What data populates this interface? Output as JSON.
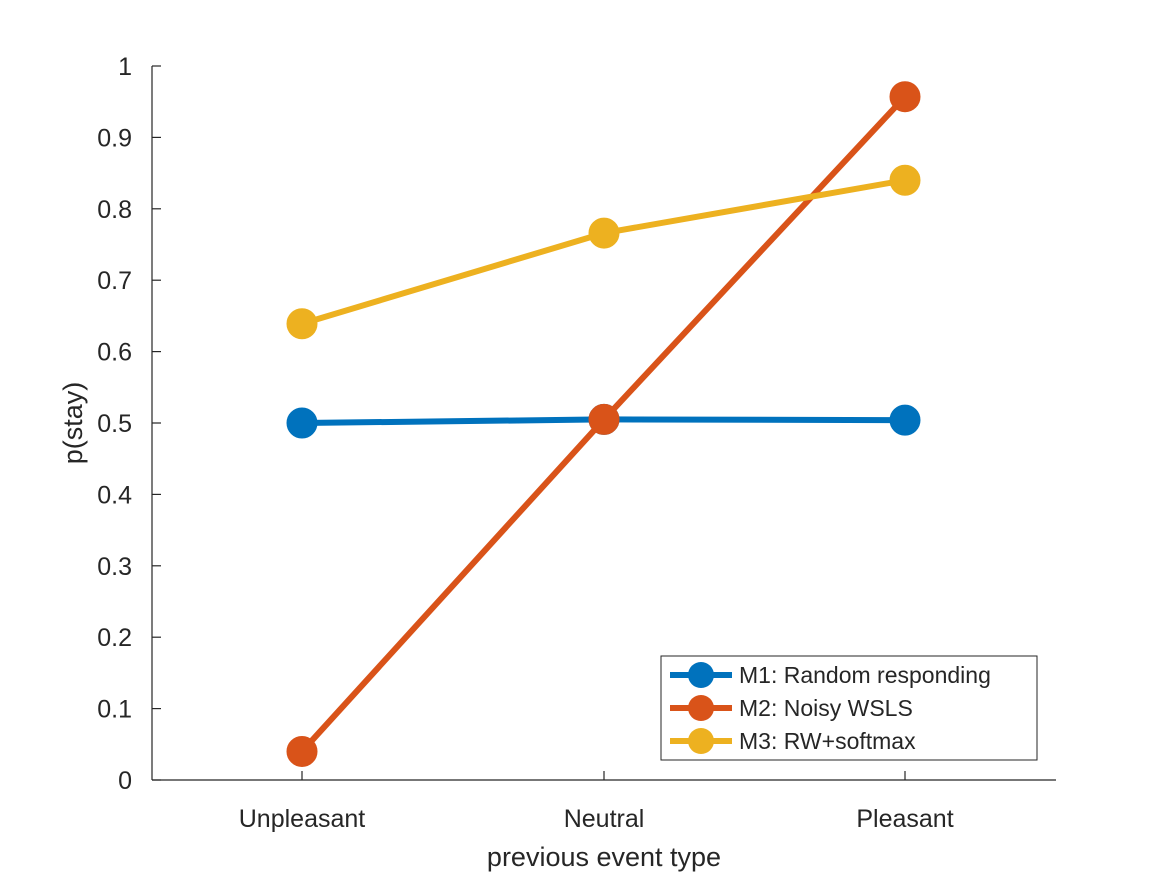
{
  "chart_data": {
    "type": "line",
    "categories": [
      "Unpleasant",
      "Neutral",
      "Pleasant"
    ],
    "xlabel": "previous event type",
    "ylabel": "p(stay)",
    "ylim": [
      0,
      1
    ],
    "yticks": [
      "0",
      "0.1",
      "0.2",
      "0.3",
      "0.4",
      "0.5",
      "0.6",
      "0.7",
      "0.8",
      "0.9",
      "1"
    ],
    "grid": false,
    "legend_position": "bottom-right",
    "series": [
      {
        "name": "M1: Random responding",
        "color": "#0072BD",
        "values": [
          0.5,
          0.505,
          0.504
        ]
      },
      {
        "name": "M2: Noisy WSLS",
        "color": "#D95319",
        "values": [
          0.04,
          0.505,
          0.957
        ]
      },
      {
        "name": "M3: RW+softmax",
        "color": "#EDB120",
        "values": [
          0.639,
          0.766,
          0.84
        ]
      }
    ]
  }
}
